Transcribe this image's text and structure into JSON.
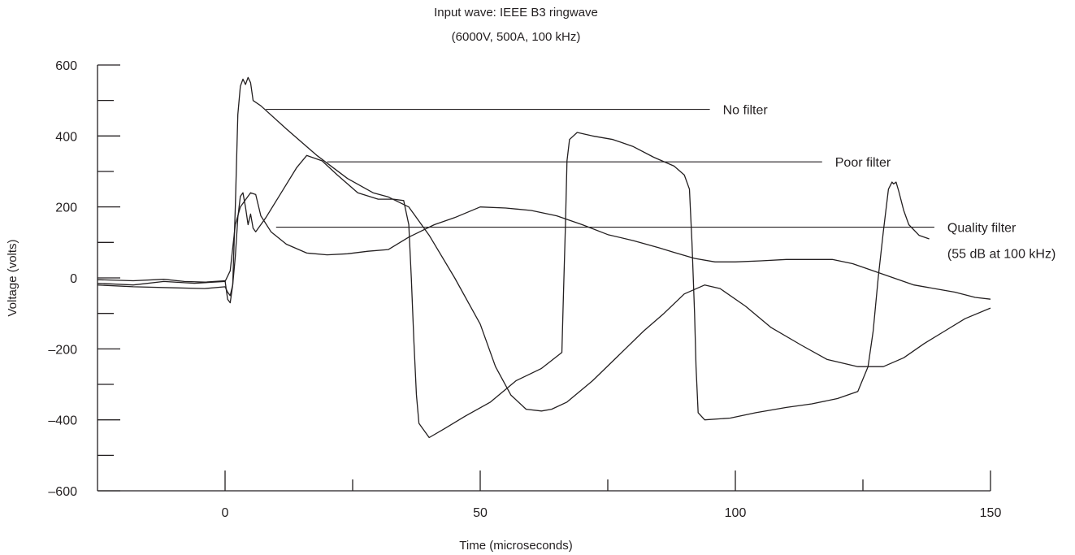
{
  "chart_data": {
    "type": "line",
    "title": [
      "Input wave: IEEE B3 ringwave",
      "(6000V, 500A, 100 kHz)"
    ],
    "xlabel": "Time (microseconds)",
    "ylabel": "Voltage (volts)",
    "xlim": [
      -25,
      150
    ],
    "ylim": [
      -600,
      600
    ],
    "x_ticks": [
      0,
      50,
      100,
      150
    ],
    "x_tick_labels": [
      "0",
      "50",
      "100",
      "150"
    ],
    "x_minor_ticks": [
      25,
      75,
      125
    ],
    "y_ticks": [
      600,
      400,
      200,
      0,
      -200,
      -400,
      -600
    ],
    "y_tick_labels": [
      "600",
      "400",
      "200",
      "0",
      "–200",
      "–400",
      "–600"
    ],
    "y_minor_ticks": [
      500,
      300,
      100,
      -100,
      -300,
      -500
    ],
    "grid": false,
    "legend": "none",
    "annotations": [
      {
        "lines": [
          "No filter"
        ],
        "series": "No filter",
        "pointer": [
          8,
          475
        ],
        "line_end": [
          95,
          475
        ]
      },
      {
        "lines": [
          "Poor filter"
        ],
        "series": "Poor filter",
        "pointer": [
          20,
          327
        ],
        "line_end": [
          117,
          327
        ]
      },
      {
        "lines": [
          "Quality filter",
          "(55 dB at 100 kHz)"
        ],
        "series": "Quality filter",
        "pointer": [
          10,
          143
        ],
        "line_end": [
          139,
          143
        ]
      }
    ],
    "series": [
      {
        "name": "No filter",
        "points": [
          [
            -25,
            -5
          ],
          [
            -18,
            -8
          ],
          [
            -12,
            -4
          ],
          [
            -8,
            -10
          ],
          [
            -4,
            -12
          ],
          [
            0,
            -8
          ],
          [
            0.5,
            -60
          ],
          [
            1,
            -70
          ],
          [
            1.5,
            -20
          ],
          [
            2,
            200
          ],
          [
            2.5,
            460
          ],
          [
            3,
            540
          ],
          [
            3.5,
            560
          ],
          [
            4,
            545
          ],
          [
            4.5,
            565
          ],
          [
            5,
            550
          ],
          [
            5.5,
            500
          ],
          [
            7,
            485
          ],
          [
            12,
            420
          ],
          [
            18,
            345
          ],
          [
            24,
            280
          ],
          [
            29,
            240
          ],
          [
            32,
            228
          ],
          [
            36,
            200
          ],
          [
            40,
            120
          ],
          [
            45,
            0
          ],
          [
            50,
            -130
          ],
          [
            53,
            -250
          ],
          [
            56,
            -330
          ],
          [
            59,
            -370
          ],
          [
            62,
            -375
          ],
          [
            64,
            -370
          ],
          [
            67,
            -350
          ],
          [
            72,
            -290
          ],
          [
            77,
            -220
          ],
          [
            82,
            -150
          ],
          [
            86,
            -100
          ],
          [
            90,
            -45
          ],
          [
            94,
            -20
          ],
          [
            97,
            -30
          ],
          [
            102,
            -80
          ],
          [
            107,
            -140
          ],
          [
            113,
            -190
          ],
          [
            118,
            -230
          ],
          [
            124,
            -250
          ],
          [
            129,
            -250
          ],
          [
            133,
            -225
          ],
          [
            137,
            -185
          ],
          [
            141,
            -150
          ],
          [
            145,
            -115
          ],
          [
            150,
            -85
          ]
        ]
      },
      {
        "name": "Poor filter",
        "points": [
          [
            -25,
            -20
          ],
          [
            -18,
            -25
          ],
          [
            -10,
            -28
          ],
          [
            -4,
            -30
          ],
          [
            0,
            -25
          ],
          [
            0.5,
            -40
          ],
          [
            1,
            -50
          ],
          [
            1.5,
            -20
          ],
          [
            2,
            60
          ],
          [
            2.5,
            170
          ],
          [
            3,
            230
          ],
          [
            3.5,
            240
          ],
          [
            4,
            200
          ],
          [
            4.5,
            150
          ],
          [
            5,
            180
          ],
          [
            5.5,
            140
          ],
          [
            6,
            130
          ],
          [
            7,
            150
          ],
          [
            8,
            170
          ],
          [
            11,
            240
          ],
          [
            14,
            310
          ],
          [
            16,
            345
          ],
          [
            19,
            330
          ],
          [
            22,
            290
          ],
          [
            26,
            240
          ],
          [
            30,
            222
          ],
          [
            33,
            222
          ],
          [
            35,
            218
          ],
          [
            36,
            150
          ],
          [
            36.5,
            0
          ],
          [
            37,
            -180
          ],
          [
            37.5,
            -330
          ],
          [
            38,
            -410
          ],
          [
            40,
            -450
          ],
          [
            43,
            -425
          ],
          [
            47,
            -390
          ],
          [
            52,
            -350
          ],
          [
            57,
            -290
          ],
          [
            62,
            -255
          ],
          [
            66,
            -210
          ],
          [
            66.3,
            -50
          ],
          [
            66.7,
            150
          ],
          [
            67,
            330
          ],
          [
            67.5,
            390
          ],
          [
            69,
            410
          ],
          [
            72,
            400
          ],
          [
            76,
            390
          ],
          [
            80,
            370
          ],
          [
            84,
            340
          ],
          [
            88,
            315
          ],
          [
            90,
            290
          ],
          [
            91,
            250
          ],
          [
            91.5,
            100
          ],
          [
            92,
            -100
          ],
          [
            92.3,
            -250
          ],
          [
            92.7,
            -380
          ],
          [
            94,
            -400
          ],
          [
            99,
            -395
          ],
          [
            104,
            -380
          ],
          [
            110,
            -365
          ],
          [
            115,
            -355
          ],
          [
            120,
            -340
          ],
          [
            124,
            -320
          ],
          [
            126,
            -250
          ],
          [
            127,
            -150
          ],
          [
            128,
            0
          ],
          [
            129,
            130
          ],
          [
            130,
            250
          ],
          [
            130.7,
            270
          ],
          [
            131,
            265
          ],
          [
            131.5,
            270
          ],
          [
            132,
            245
          ],
          [
            133,
            190
          ],
          [
            134,
            150
          ],
          [
            136,
            120
          ],
          [
            138,
            110
          ]
        ]
      },
      {
        "name": "Quality filter",
        "points": [
          [
            -25,
            -15
          ],
          [
            -18,
            -20
          ],
          [
            -12,
            -10
          ],
          [
            -6,
            -15
          ],
          [
            0,
            -10
          ],
          [
            1,
            20
          ],
          [
            2,
            150
          ],
          [
            3,
            200
          ],
          [
            4,
            220
          ],
          [
            5,
            240
          ],
          [
            6,
            235
          ],
          [
            7,
            175
          ],
          [
            9,
            130
          ],
          [
            12,
            95
          ],
          [
            16,
            70
          ],
          [
            20,
            65
          ],
          [
            24,
            68
          ],
          [
            28,
            75
          ],
          [
            32,
            80
          ],
          [
            36,
            115
          ],
          [
            41,
            150
          ],
          [
            45,
            170
          ],
          [
            50,
            200
          ],
          [
            55,
            197
          ],
          [
            60,
            190
          ],
          [
            65,
            175
          ],
          [
            70,
            150
          ],
          [
            75,
            122
          ],
          [
            80,
            105
          ],
          [
            85,
            85
          ],
          [
            88,
            72
          ],
          [
            92,
            55
          ],
          [
            96,
            45
          ],
          [
            100,
            45
          ],
          [
            105,
            48
          ],
          [
            110,
            52
          ],
          [
            115,
            52
          ],
          [
            119,
            52
          ],
          [
            123,
            40
          ],
          [
            127,
            20
          ],
          [
            131,
            0
          ],
          [
            135,
            -20
          ],
          [
            139,
            -30
          ],
          [
            143,
            -40
          ],
          [
            147,
            -55
          ],
          [
            150,
            -60
          ]
        ]
      }
    ]
  }
}
